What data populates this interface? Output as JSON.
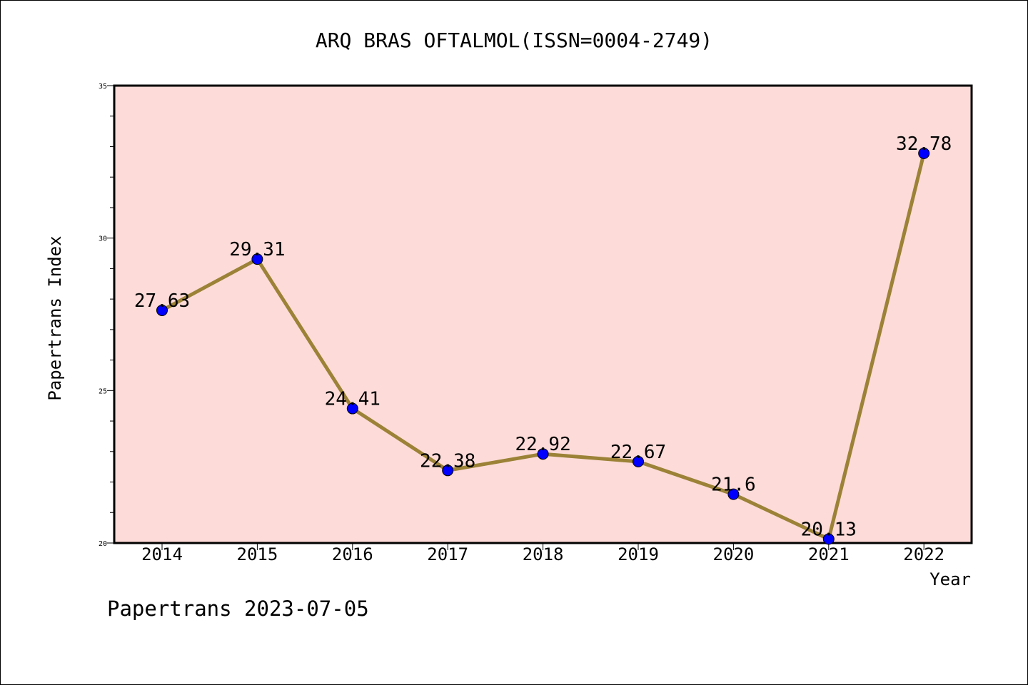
{
  "chart_data": {
    "type": "line",
    "title": "ARQ BRAS OFTALMOL(ISSN=0004-2749)",
    "xlabel": "Year",
    "ylabel": "Papertrans Index",
    "categories": [
      "2014",
      "2015",
      "2016",
      "2017",
      "2018",
      "2019",
      "2020",
      "2021",
      "2022"
    ],
    "series": [
      {
        "values": [
          27.63,
          29.31,
          24.41,
          22.38,
          22.92,
          22.67,
          21.6,
          20.13,
          32.78
        ],
        "labels": [
          "27.63",
          "29.31",
          "24.41",
          "22.38",
          "22.92",
          "22.67",
          "21.6",
          "20.13",
          "32.78"
        ]
      }
    ],
    "ylim": [
      20,
      35
    ],
    "yticks": [
      "20",
      "25",
      "30",
      "35"
    ],
    "grid": false,
    "legend": "none",
    "colors": {
      "plot_background": "#fddbd8",
      "line": "#9b8237",
      "marker": "#0000ff"
    }
  },
  "footer": "Papertrans 2023-07-05"
}
